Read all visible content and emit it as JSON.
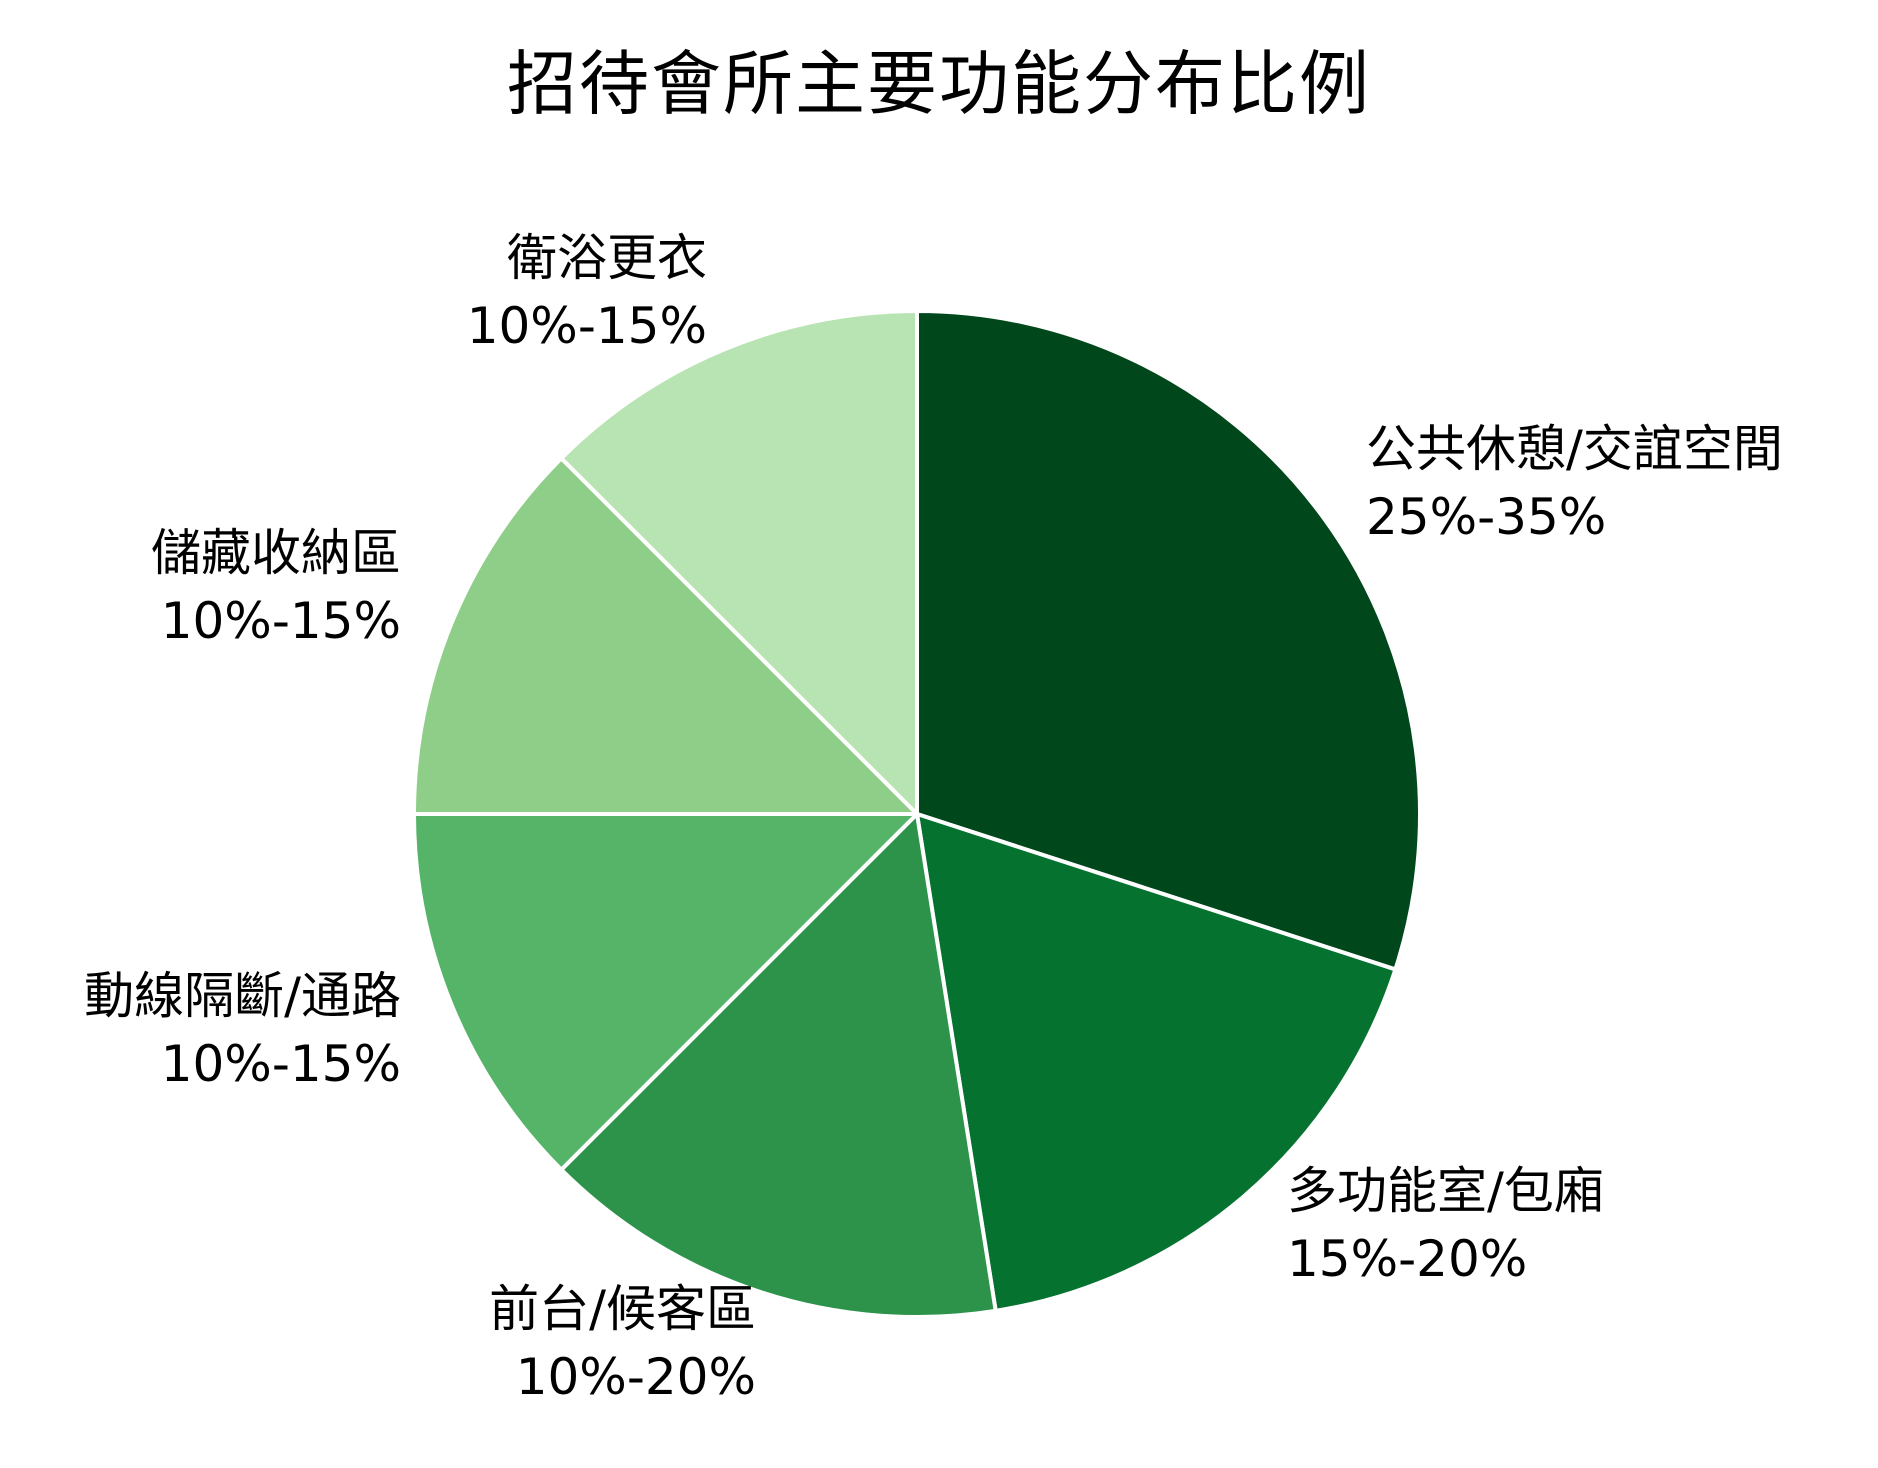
{
  "chart_data": {
    "type": "pie",
    "title": "招待會所主要功能分布比例",
    "start_angle": "12 o'clock",
    "direction": "clockwise",
    "slices": [
      {
        "name": "公共休憩/交誼空間",
        "range_label": "25%-35%",
        "value": 30.0,
        "color": "#00471b"
      },
      {
        "name": "多功能室/包廂",
        "range_label": "15%-20%",
        "value": 17.5,
        "color": "#067230"
      },
      {
        "name": "前台/候客區",
        "range_label": "10%-20%",
        "value": 15.0,
        "color": "#2d934b"
      },
      {
        "name": "動線隔斷/通路",
        "range_label": "10%-15%",
        "value": 12.5,
        "color": "#55b468"
      },
      {
        "name": "儲藏收納區",
        "range_label": "10%-15%",
        "value": 12.5,
        "color": "#8ece88"
      },
      {
        "name": "衛浴更衣",
        "range_label": "10%-15%",
        "value": 12.5,
        "color": "#b8e3b2"
      }
    ]
  }
}
